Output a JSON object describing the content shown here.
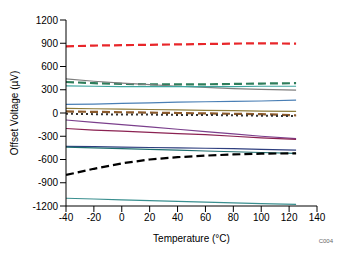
{
  "chart_data": {
    "type": "line",
    "x_label": "Temperature (°C)",
    "y_label": "Offset Voltage (µV)",
    "annotation": "C004",
    "x": [
      -40,
      -20,
      0,
      20,
      40,
      60,
      80,
      100,
      125
    ],
    "xlim": [
      -40,
      140
    ],
    "xticks": [
      -40,
      -20,
      0,
      20,
      40,
      60,
      80,
      100,
      120,
      140
    ],
    "ylim": [
      -1200,
      1200
    ],
    "yticks": [
      -1200,
      -900,
      -600,
      -300,
      0,
      300,
      600,
      900,
      1200
    ],
    "grid": false,
    "series": [
      {
        "color": "#e8262a",
        "line_style": "dashed",
        "values": [
          860,
          870,
          875,
          880,
          885,
          890,
          895,
          900,
          895
        ]
      },
      {
        "color": "#2e7d5b",
        "line_style": "dashed",
        "values": [
          400,
          385,
          375,
          370,
          370,
          370,
          375,
          380,
          385
        ]
      },
      {
        "color": "#7f7f7f",
        "line_style": "solid",
        "values": [
          440,
          410,
          385,
          365,
          345,
          330,
          315,
          305,
          295
        ]
      },
      {
        "color": "#3ea6a0",
        "line_style": "solid",
        "values": [
          350,
          345,
          340,
          340,
          340,
          340,
          340,
          345,
          345
        ]
      },
      {
        "color": "#4a7fb5",
        "line_style": "solid",
        "values": [
          110,
          115,
          125,
          130,
          140,
          145,
          150,
          155,
          165
        ]
      },
      {
        "color": "#8c7b3a",
        "line_style": "solid",
        "values": [
          60,
          55,
          50,
          45,
          40,
          35,
          30,
          25,
          20
        ]
      },
      {
        "color": "#8b5a2b",
        "line_style": "dashed",
        "values": [
          20,
          15,
          10,
          5,
          0,
          -5,
          -10,
          -15,
          -30
        ]
      },
      {
        "color": "#333333",
        "line_style": "dotted",
        "values": [
          -10,
          -15,
          -20,
          -20,
          -25,
          -25,
          -30,
          -35,
          -40
        ]
      },
      {
        "color": "#7b3f8c",
        "line_style": "solid",
        "values": [
          -90,
          -120,
          -150,
          -180,
          -210,
          -240,
          -270,
          -300,
          -330
        ]
      },
      {
        "color": "#8b2252",
        "line_style": "solid",
        "values": [
          -200,
          -220,
          -235,
          -250,
          -265,
          -280,
          -300,
          -320,
          -340
        ]
      },
      {
        "color": "#2f3f7f",
        "line_style": "solid",
        "values": [
          -430,
          -435,
          -440,
          -445,
          -450,
          -455,
          -460,
          -470,
          -480
        ]
      },
      {
        "color": "#1f6f6f",
        "line_style": "solid",
        "values": [
          -440,
          -450,
          -460,
          -470,
          -480,
          -490,
          -500,
          -510,
          -520
        ]
      },
      {
        "color": "#000000",
        "line_style": "dashed",
        "values": [
          -800,
          -720,
          -650,
          -600,
          -570,
          -550,
          -535,
          -525,
          -520
        ]
      },
      {
        "color": "#3a8f8f",
        "line_style": "solid",
        "values": [
          -1100,
          -1110,
          -1120,
          -1130,
          -1140,
          -1150,
          -1160,
          -1170,
          -1180
        ]
      }
    ]
  }
}
